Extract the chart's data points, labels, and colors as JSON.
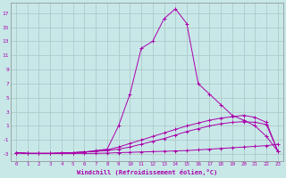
{
  "xlabel": "Windchill (Refroidissement éolien,°C)",
  "xlim": [
    -0.5,
    23.5
  ],
  "ylim": [
    -4.0,
    18.5
  ],
  "xticks": [
    0,
    1,
    2,
    3,
    4,
    5,
    6,
    7,
    8,
    9,
    10,
    11,
    12,
    13,
    14,
    15,
    16,
    17,
    18,
    19,
    20,
    21,
    22,
    23
  ],
  "yticks": [
    -3,
    -1,
    1,
    3,
    5,
    7,
    9,
    11,
    13,
    15,
    17
  ],
  "bg_color": "#c8e8e8",
  "line_color": "#aa00aa",
  "grid_color": "#b0c8c8",
  "lines": [
    {
      "x": [
        0,
        1,
        2,
        3,
        4,
        5,
        6,
        7,
        8,
        9,
        10,
        11,
        12,
        13,
        14,
        15,
        16,
        17,
        18,
        19,
        20,
        21,
        22,
        23
      ],
      "y": [
        -2.8,
        -2.9,
        -2.9,
        -2.9,
        -2.9,
        -2.9,
        -2.9,
        -2.9,
        -2.85,
        -2.8,
        -2.75,
        -2.7,
        -2.65,
        -2.6,
        -2.55,
        -2.5,
        -2.4,
        -2.3,
        -2.2,
        -2.1,
        -2.0,
        -1.9,
        -1.8,
        -1.6
      ]
    },
    {
      "x": [
        0,
        1,
        2,
        3,
        4,
        5,
        6,
        7,
        8,
        9,
        10,
        11,
        12,
        13,
        14,
        15,
        16,
        17,
        18,
        19,
        20,
        21,
        22,
        23
      ],
      "y": [
        -2.8,
        -2.9,
        -2.9,
        -2.9,
        -2.85,
        -2.8,
        -2.7,
        -2.6,
        -2.5,
        -2.3,
        -2.0,
        -1.6,
        -1.2,
        -0.8,
        -0.3,
        0.2,
        0.6,
        1.0,
        1.3,
        1.5,
        1.6,
        1.5,
        1.2,
        -2.6
      ]
    },
    {
      "x": [
        0,
        1,
        2,
        3,
        4,
        5,
        6,
        7,
        8,
        9,
        10,
        11,
        12,
        13,
        14,
        15,
        16,
        17,
        18,
        19,
        20,
        21,
        22,
        23
      ],
      "y": [
        -2.8,
        -2.9,
        -2.9,
        -2.9,
        -2.85,
        -2.8,
        -2.7,
        -2.6,
        -2.4,
        -2.0,
        -1.5,
        -1.0,
        -0.5,
        0.0,
        0.5,
        1.0,
        1.4,
        1.8,
        2.1,
        2.3,
        2.5,
        2.2,
        1.5,
        -2.6
      ]
    },
    {
      "x": [
        0,
        1,
        2,
        3,
        4,
        5,
        6,
        7,
        8,
        9,
        10,
        11,
        12,
        13,
        14,
        15,
        16,
        17,
        18,
        19,
        20,
        21,
        22,
        23
      ],
      "y": [
        -2.8,
        -2.9,
        -2.9,
        -2.9,
        -2.85,
        -2.8,
        -2.7,
        -2.5,
        -2.3,
        1.0,
        5.5,
        12.0,
        13.0,
        16.2,
        17.6,
        15.5,
        7.0,
        5.5,
        4.0,
        2.5,
        1.8,
        1.0,
        -0.5,
        -2.6
      ]
    }
  ]
}
